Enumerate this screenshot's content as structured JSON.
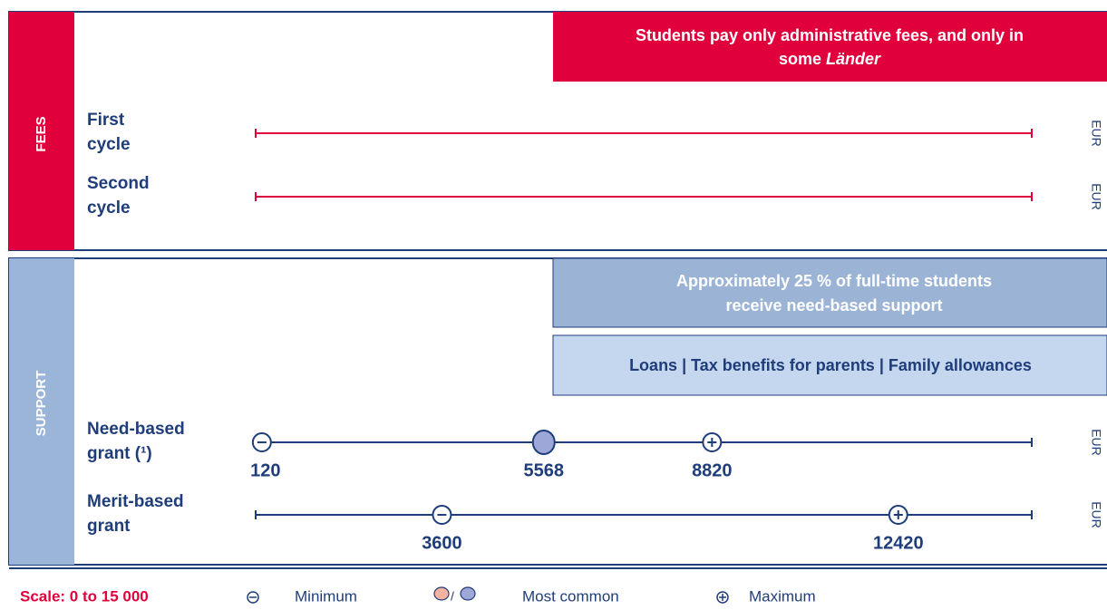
{
  "scale": {
    "label": "Scale: 0 to 15 000",
    "min": 0,
    "max": 15000
  },
  "fees": {
    "label": "FEES",
    "note": "Students pay only administrative fees, and only in",
    "note_end": "some",
    "note_italic": "Länder",
    "rows": [
      {
        "label": [
          "First",
          "cycle"
        ],
        "unit": "EUR"
      },
      {
        "label": [
          "Second",
          "cycle"
        ],
        "unit": "EUR"
      }
    ]
  },
  "support": {
    "label": "SUPPORT",
    "note": [
      "Approximately 25 % of full-time students",
      "receive need-based support"
    ],
    "other": "Loans | Tax benefits for parents | Family allowances",
    "rows": [
      {
        "label": [
          "Need-based",
          "grant (¹)"
        ],
        "unit": "EUR",
        "min": 120,
        "most_common": 5568,
        "max": 8820
      },
      {
        "label": [
          "Merit-based",
          "grant"
        ],
        "unit": "EUR",
        "min": 3600,
        "max": 12420
      }
    ]
  },
  "legend": {
    "minimum": "Minimum",
    "separator": "/",
    "most_common": "Most common",
    "maximum": "Maximum"
  }
}
